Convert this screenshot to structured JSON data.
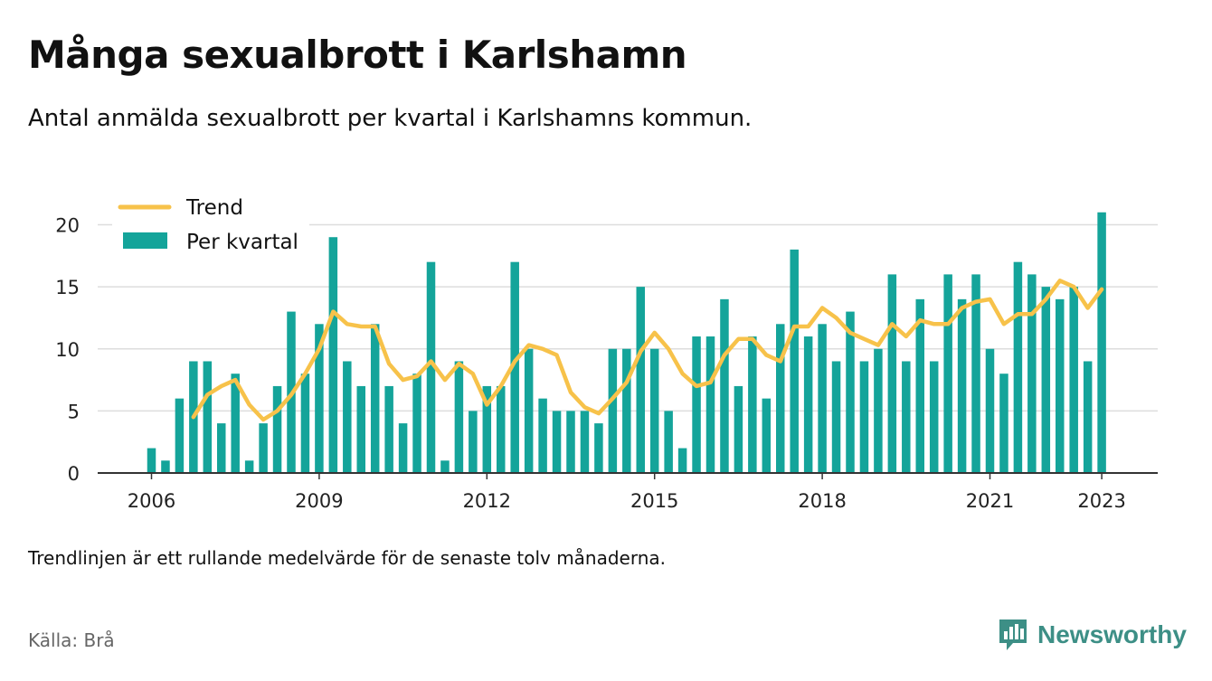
{
  "title": "Många sexualbrott i Karlshamn",
  "subtitle": "Antal anmälda sexualbrott per kvartal i Karlshamns kommun.",
  "note": "Trendlinjen är ett rullande medelvärde för de senaste tolv månaderna.",
  "source": "Källa: Brå",
  "brand": "Newsworthy",
  "colors": {
    "bar": "#14a49a",
    "trend": "#f7c24a",
    "grid": "#dddddd",
    "axis": "#333333",
    "brand": "#3d8f86"
  },
  "chart_data": {
    "type": "bar",
    "xlabel": "",
    "ylabel": "",
    "ylim": [
      0,
      22
    ],
    "yticks": [
      0,
      5,
      10,
      15,
      20
    ],
    "xticks": [
      "2006",
      "2009",
      "2012",
      "2015",
      "2018",
      "2021",
      "2023"
    ],
    "grid": true,
    "legend_position": "top-left",
    "categories": [
      "2006 Q1",
      "2006 Q2",
      "2006 Q3",
      "2006 Q4",
      "2007 Q1",
      "2007 Q2",
      "2007 Q3",
      "2007 Q4",
      "2008 Q1",
      "2008 Q2",
      "2008 Q3",
      "2008 Q4",
      "2009 Q1",
      "2009 Q2",
      "2009 Q3",
      "2009 Q4",
      "2010 Q1",
      "2010 Q2",
      "2010 Q3",
      "2010 Q4",
      "2011 Q1",
      "2011 Q2",
      "2011 Q3",
      "2011 Q4",
      "2012 Q1",
      "2012 Q2",
      "2012 Q3",
      "2012 Q4",
      "2013 Q1",
      "2013 Q2",
      "2013 Q3",
      "2013 Q4",
      "2014 Q1",
      "2014 Q2",
      "2014 Q3",
      "2014 Q4",
      "2015 Q1",
      "2015 Q2",
      "2015 Q3",
      "2015 Q4",
      "2016 Q1",
      "2016 Q2",
      "2016 Q3",
      "2016 Q4",
      "2017 Q1",
      "2017 Q2",
      "2017 Q3",
      "2017 Q4",
      "2018 Q1",
      "2018 Q2",
      "2018 Q3",
      "2018 Q4",
      "2019 Q1",
      "2019 Q2",
      "2019 Q3",
      "2019 Q4",
      "2020 Q1",
      "2020 Q2",
      "2020 Q3",
      "2020 Q4",
      "2021 Q1",
      "2021 Q2",
      "2021 Q3",
      "2021 Q4",
      "2022 Q1",
      "2022 Q2",
      "2022 Q3",
      "2022 Q4",
      "2023 Q1"
    ],
    "series": [
      {
        "name": "Per kvartal",
        "type": "bar",
        "values": [
          2,
          1,
          6,
          9,
          9,
          4,
          8,
          1,
          4,
          7,
          13,
          8,
          12,
          19,
          9,
          7,
          12,
          7,
          4,
          8,
          17,
          1,
          9,
          5,
          7,
          7,
          17,
          10,
          6,
          5,
          5,
          5,
          4,
          10,
          10,
          15,
          10,
          5,
          2,
          11,
          11,
          14,
          7,
          11,
          6,
          12,
          18,
          11,
          12,
          9,
          13,
          9,
          10,
          16,
          9,
          14,
          9,
          16,
          14,
          16,
          10,
          8,
          17,
          16,
          15,
          14,
          15,
          9,
          21
        ]
      },
      {
        "name": "Trend",
        "type": "line",
        "values": [
          null,
          null,
          null,
          4.5,
          6.3,
          7,
          7.5,
          5.5,
          4.3,
          5,
          6.3,
          8,
          10,
          13,
          12,
          11.8,
          11.8,
          8.8,
          7.5,
          7.8,
          9,
          7.5,
          8.8,
          8,
          5.5,
          7,
          9,
          10.3,
          10,
          9.5,
          6.5,
          5.3,
          4.8,
          6,
          7.3,
          9.8,
          11.3,
          10,
          8,
          7,
          7.3,
          9.5,
          10.8,
          10.8,
          9.5,
          9,
          11.8,
          11.8,
          13.3,
          12.5,
          11.3,
          10.8,
          10.3,
          12,
          11,
          12.3,
          12,
          12,
          13.3,
          13.8,
          14,
          12,
          12.8,
          12.8,
          14,
          15.5,
          15,
          13.3,
          14.8
        ]
      }
    ]
  }
}
